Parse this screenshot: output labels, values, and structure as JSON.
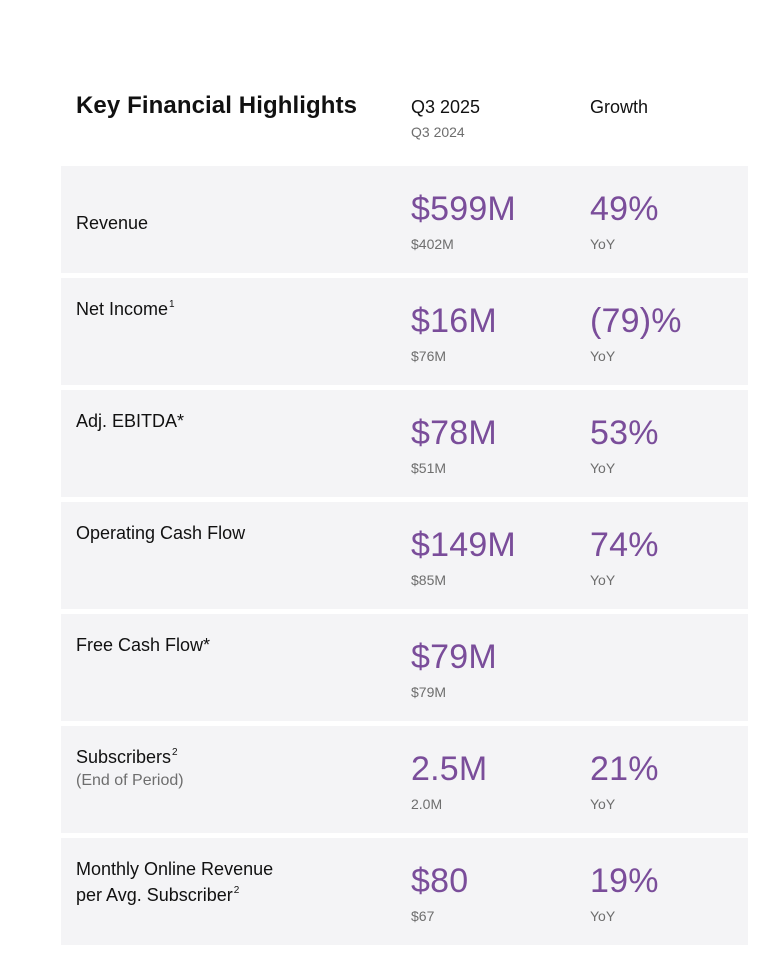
{
  "header": {
    "title": "Key Financial Highlights",
    "current_period": "Q3 2025",
    "prior_period": "Q3 2024",
    "growth": "Growth"
  },
  "colors": {
    "accent": "#7a4d9a",
    "row_bg": "#f4f4f6",
    "muted": "#6e6e6e"
  },
  "rows": [
    {
      "label": "Revenue",
      "sup": "",
      "sublabel": "",
      "current": "$599M",
      "prior": "$402M",
      "growth": "49%",
      "growth_note": "YoY"
    },
    {
      "label": "Net Income",
      "sup": "1",
      "sublabel": "",
      "current": "$16M",
      "prior": "$76M",
      "growth": "(79)%",
      "growth_note": "YoY"
    },
    {
      "label": "Adj. EBITDA*",
      "sup": "",
      "sublabel": "",
      "current": "$78M",
      "prior": "$51M",
      "growth": "53%",
      "growth_note": "YoY"
    },
    {
      "label": "Operating Cash Flow",
      "sup": "",
      "sublabel": "",
      "current": "$149M",
      "prior": "$85M",
      "growth": "74%",
      "growth_note": "YoY"
    },
    {
      "label": "Free Cash Flow*",
      "sup": "",
      "sublabel": "",
      "current": "$79M",
      "prior": "$79M",
      "growth": "",
      "growth_note": ""
    },
    {
      "label": "Subscribers",
      "sup": "2",
      "sublabel": "(End of Period)",
      "current": "2.5M",
      "prior": "2.0M",
      "growth": "21%",
      "growth_note": "YoY"
    },
    {
      "label": "Monthly Online Revenue",
      "label_line2": "per Avg. Subscriber",
      "sup": "2",
      "sublabel": "",
      "current": "$80",
      "prior": "$67",
      "growth": "19%",
      "growth_note": "YoY"
    }
  ]
}
